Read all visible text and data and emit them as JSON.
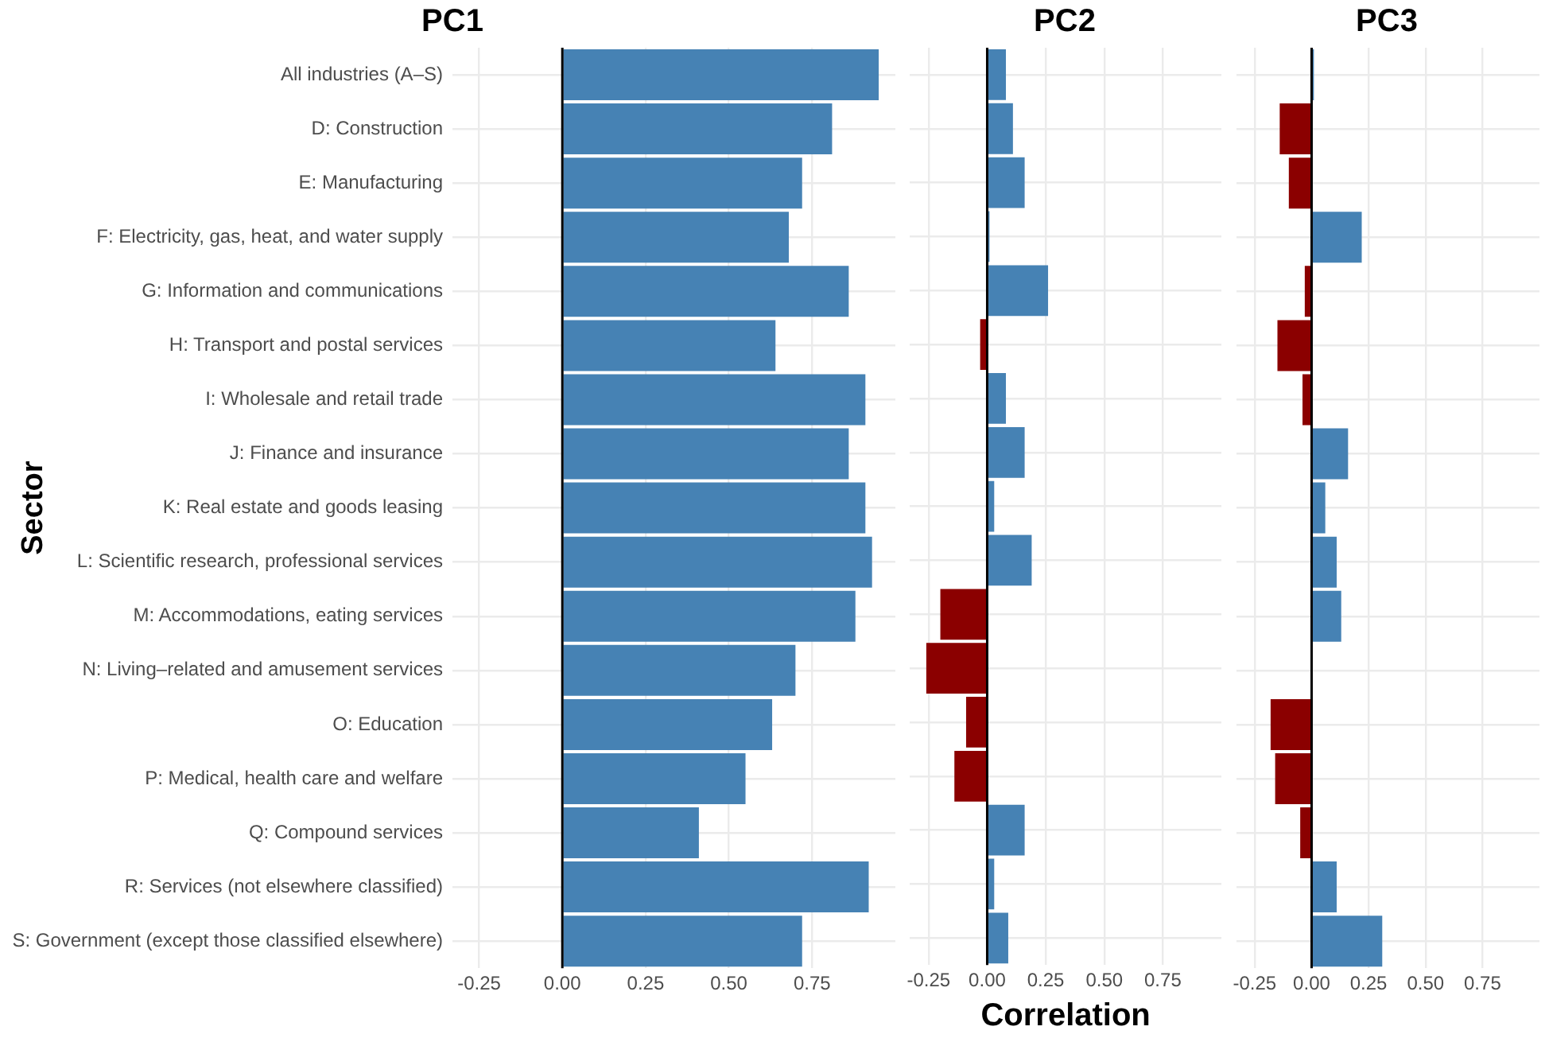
{
  "chart_data": [
    {
      "type": "bar",
      "orientation": "horizontal",
      "title": "PC1",
      "ylabel": "Sector",
      "categories": [
        "All industries (A–S)",
        "D: Construction",
        "E: Manufacturing",
        "F: Electricity, gas, heat, and water supply",
        "G: Information and communications",
        "H: Transport and postal services",
        "I: Wholesale and retail trade",
        "J: Finance and insurance",
        "K: Real estate and goods leasing",
        "L: Scientific research, professional services",
        "M: Accommodations, eating services",
        "N: Living–related and amusement services",
        "O: Education",
        "P: Medical, health care and welfare",
        "Q: Compound services",
        "R: Services (not elsewhere classified)",
        "S: Government (except those classified elsewhere)"
      ],
      "series": [
        {
          "values": [
            0.95,
            0.81,
            0.72,
            0.68,
            0.86,
            0.64,
            0.91,
            0.86,
            0.91,
            0.93,
            0.88,
            0.7,
            0.63,
            0.55,
            0.41,
            0.92,
            0.72
          ],
          "colors": [
            "#4682b4",
            "#4682b4",
            "#4682b4",
            "#4682b4",
            "#4682b4",
            "#4682b4",
            "#4682b4",
            "#4682b4",
            "#4682b4",
            "#4682b4",
            "#4682b4",
            "#4682b4",
            "#4682b4",
            "#4682b4",
            "#4682b4",
            "#4682b4",
            "#4682b4"
          ]
        }
      ],
      "xlim": [
        -0.33,
        1.0
      ],
      "xticks": [
        {
          "value": -0.25,
          "label": "-0.25"
        },
        {
          "value": 0,
          "label": "0.00"
        },
        {
          "value": 0.25,
          "label": "0.25"
        },
        {
          "value": 0.5,
          "label": "0.50"
        },
        {
          "value": 0.75,
          "label": "0.75"
        }
      ],
      "ref_lines": [
        {
          "axis": "x",
          "value": 0,
          "color": "#000000"
        }
      ],
      "grid": true
    },
    {
      "type": "bar",
      "orientation": "horizontal",
      "title": "PC2",
      "xlabel": "Correlation",
      "tick_labels": "x",
      "categories": [
        null,
        null,
        null,
        null,
        null,
        null,
        null,
        null,
        null,
        null,
        null,
        null,
        null,
        null,
        null,
        null,
        null
      ],
      "series": [
        {
          "values": [
            0.08,
            0.11,
            0.16,
            0.01,
            0.26,
            -0.03,
            0.08,
            0.16,
            0.03,
            0.19,
            -0.2,
            -0.26,
            -0.09,
            -0.14,
            0.16,
            0.03,
            0.09
          ],
          "colors": [
            "#4682b4",
            "#4682b4",
            "#4682b4",
            "#4682b4",
            "#4682b4",
            "#8b0000",
            "#4682b4",
            "#4682b4",
            "#4682b4",
            "#4682b4",
            "#8b0000",
            "#8b0000",
            "#8b0000",
            "#8b0000",
            "#4682b4",
            "#4682b4",
            "#4682b4"
          ]
        }
      ],
      "xlim": [
        -0.33,
        1.0
      ],
      "xticks": [
        {
          "value": -0.25,
          "label": "-0.25"
        },
        {
          "value": 0,
          "label": "0.00"
        },
        {
          "value": 0.25,
          "label": "0.25"
        },
        {
          "value": 0.5,
          "label": "0.50"
        },
        {
          "value": 0.75,
          "label": "0.75"
        }
      ],
      "ref_lines": [
        {
          "axis": "x",
          "value": 0,
          "color": "#000000"
        }
      ],
      "grid": true
    },
    {
      "type": "bar",
      "orientation": "horizontal",
      "title": "PC3",
      "tick_labels": "x",
      "categories": [
        null,
        null,
        null,
        null,
        null,
        null,
        null,
        null,
        null,
        null,
        null,
        null,
        null,
        null,
        null,
        null,
        null
      ],
      "series": [
        {
          "values": [
            0.01,
            -0.14,
            -0.1,
            0.22,
            -0.03,
            -0.15,
            -0.04,
            0.16,
            0.06,
            0.11,
            0.13,
            0.0,
            -0.18,
            -0.16,
            -0.05,
            0.11,
            0.31
          ],
          "colors": [
            "#4682b4",
            "#8b0000",
            "#8b0000",
            "#4682b4",
            "#8b0000",
            "#8b0000",
            "#8b0000",
            "#4682b4",
            "#4682b4",
            "#4682b4",
            "#4682b4",
            "#4682b4",
            "#8b0000",
            "#8b0000",
            "#8b0000",
            "#4682b4",
            "#4682b4"
          ]
        }
      ],
      "xlim": [
        -0.33,
        1.0
      ],
      "xticks": [
        {
          "value": -0.25,
          "label": "-0.25"
        },
        {
          "value": 0,
          "label": "0.00"
        },
        {
          "value": 0.25,
          "label": "0.25"
        },
        {
          "value": 0.5,
          "label": "0.50"
        },
        {
          "value": 0.75,
          "label": "0.75"
        }
      ],
      "ref_lines": [
        {
          "axis": "x",
          "value": 0,
          "color": "#000000"
        }
      ],
      "grid": true
    }
  ]
}
